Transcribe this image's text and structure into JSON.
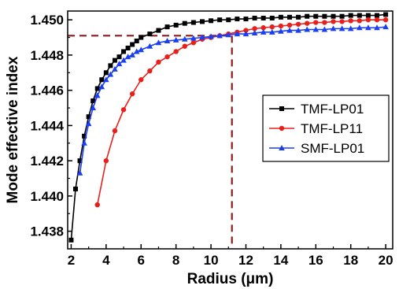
{
  "chart_data": {
    "type": "line",
    "xlabel": "Radius (μm)",
    "ylabel": "Mode effective index",
    "xlim": [
      1.8,
      20.4
    ],
    "ylim": [
      1.437,
      1.4505
    ],
    "xticks": [
      2,
      4,
      6,
      8,
      10,
      12,
      14,
      16,
      18,
      20
    ],
    "yticks": [
      1.438,
      1.44,
      1.442,
      1.444,
      1.446,
      1.448,
      1.45
    ],
    "ytick_labels": [
      "1.438",
      "1.440",
      "1.442",
      "1.444",
      "1.446",
      "1.448",
      "1.450"
    ],
    "legend": "right, inside plot",
    "grid": false,
    "reference_lines": {
      "x": 11.2,
      "y": 1.4491,
      "color": "#8b1a1a",
      "style": "dashed"
    },
    "series": [
      {
        "name": "TMF-LP01",
        "color": "#000000",
        "marker": "square",
        "x": [
          2.0,
          2.25,
          2.5,
          2.75,
          3.0,
          3.25,
          3.5,
          3.75,
          4.0,
          4.25,
          4.5,
          4.75,
          5.0,
          5.25,
          5.5,
          5.75,
          6.0,
          6.5,
          7.0,
          7.5,
          8.0,
          8.5,
          9.0,
          9.5,
          10.0,
          10.5,
          11.0,
          11.5,
          12.0,
          12.5,
          13.0,
          13.5,
          14.0,
          14.5,
          15.0,
          15.5,
          16.0,
          16.5,
          17.0,
          17.5,
          18.0,
          18.5,
          19.0,
          19.5,
          20.0
        ],
        "y": [
          1.4375,
          1.4404,
          1.442,
          1.4434,
          1.4445,
          1.4454,
          1.4461,
          1.4466,
          1.447,
          1.4474,
          1.4477,
          1.4479,
          1.4482,
          1.4484,
          1.4486,
          1.4488,
          1.449,
          1.4492,
          1.4494,
          1.4496,
          1.4497,
          1.4498,
          1.44985,
          1.4499,
          1.44995,
          1.45,
          1.45,
          1.45005,
          1.45005,
          1.4501,
          1.4501,
          1.4501,
          1.45015,
          1.45015,
          1.45015,
          1.4502,
          1.4502,
          1.4502,
          1.4502,
          1.4502,
          1.45025,
          1.45025,
          1.45025,
          1.45025,
          1.4503
        ]
      },
      {
        "name": "TMF-LP11",
        "color": "#e8201c",
        "marker": "circle",
        "x": [
          3.5,
          4.0,
          4.5,
          5.0,
          5.5,
          6.0,
          6.5,
          7.0,
          7.5,
          8.0,
          8.5,
          9.0,
          9.5,
          10.0,
          10.5,
          11.0,
          11.5,
          12.0,
          12.5,
          13.0,
          13.5,
          14.0,
          14.5,
          15.0,
          15.5,
          16.0,
          16.5,
          17.0,
          17.5,
          18.0,
          18.5,
          19.0,
          19.5,
          20.0
        ],
        "y": [
          1.4395,
          1.442,
          1.4437,
          1.4449,
          1.4458,
          1.4466,
          1.4471,
          1.4476,
          1.4479,
          1.4482,
          1.4485,
          1.4487,
          1.4489,
          1.449,
          1.4491,
          1.4492,
          1.4493,
          1.4494,
          1.4495,
          1.44955,
          1.4496,
          1.44965,
          1.4497,
          1.44975,
          1.4498,
          1.44985,
          1.44985,
          1.4499,
          1.4499,
          1.44995,
          1.44995,
          1.45,
          1.45,
          1.45
        ]
      },
      {
        "name": "SMF-LP01",
        "color": "#1a3ff0",
        "marker": "triangle",
        "x": [
          2.5,
          2.75,
          3.0,
          3.25,
          3.5,
          3.75,
          4.0,
          4.25,
          4.5,
          4.75,
          5.0,
          5.25,
          5.5,
          5.75,
          6.0,
          6.5,
          7.0,
          7.5,
          8.0,
          8.5,
          9.0,
          9.5,
          10.0,
          10.5,
          11.0,
          11.5,
          12.0,
          12.5,
          13.0,
          13.5,
          14.0,
          14.5,
          15.0,
          15.5,
          16.0,
          16.5,
          17.0,
          17.5,
          18.0,
          18.5,
          19.0,
          19.5,
          20.0
        ],
        "y": [
          1.4413,
          1.443,
          1.4441,
          1.445,
          1.4457,
          1.4462,
          1.4466,
          1.4469,
          1.4472,
          1.4475,
          1.4477,
          1.4479,
          1.448,
          1.4482,
          1.4483,
          1.4485,
          1.4487,
          1.4488,
          1.44885,
          1.4489,
          1.44895,
          1.449,
          1.44905,
          1.4491,
          1.44915,
          1.4492,
          1.4492,
          1.44925,
          1.4493,
          1.4493,
          1.44935,
          1.4494,
          1.4494,
          1.44945,
          1.44945,
          1.44945,
          1.4495,
          1.4495,
          1.4495,
          1.44955,
          1.44955,
          1.44955,
          1.4496
        ]
      }
    ]
  }
}
